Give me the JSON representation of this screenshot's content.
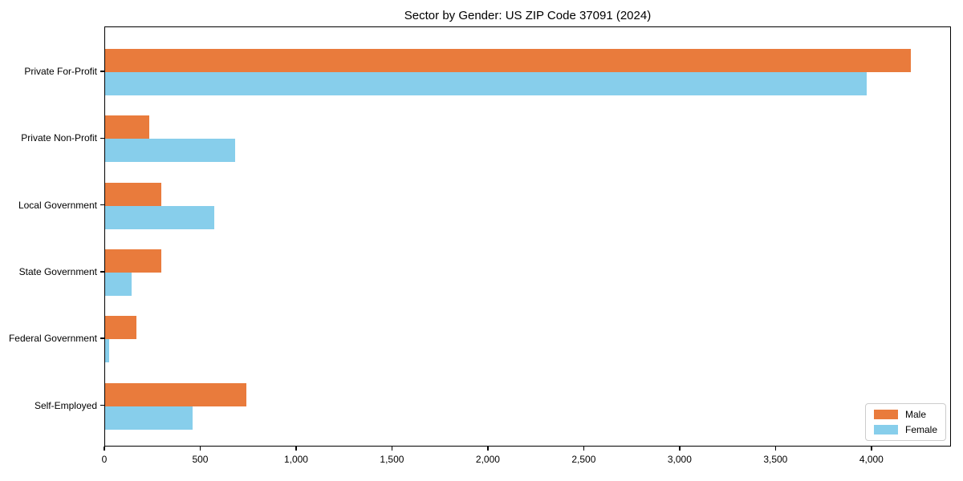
{
  "chart_data": {
    "type": "bar",
    "orientation": "horizontal",
    "title": "Sector by Gender: US ZIP Code 37091 (2024)",
    "categories": [
      "Private For-Profit",
      "Private Non-Profit",
      "Local Government",
      "State Government",
      "Federal Government",
      "Self-Employed"
    ],
    "series": [
      {
        "name": "Male",
        "color": "#e97b3c",
        "values": [
          4200,
          230,
          295,
          295,
          165,
          735
        ]
      },
      {
        "name": "Female",
        "color": "#87ceeb",
        "values": [
          3970,
          680,
          570,
          140,
          20,
          455
        ]
      }
    ],
    "xlabel": "",
    "ylabel": "",
    "xlim": [
      0,
      4415
    ],
    "xticks": [
      0,
      500,
      1000,
      1500,
      2000,
      2500,
      3000,
      3500,
      4000
    ],
    "xtick_labels": [
      "0",
      "500",
      "1,000",
      "1,500",
      "2,000",
      "2,500",
      "3,000",
      "3,500",
      "4,000"
    ],
    "grid": false,
    "legend": {
      "position": "lower right",
      "entries": [
        "Male",
        "Female"
      ]
    }
  }
}
